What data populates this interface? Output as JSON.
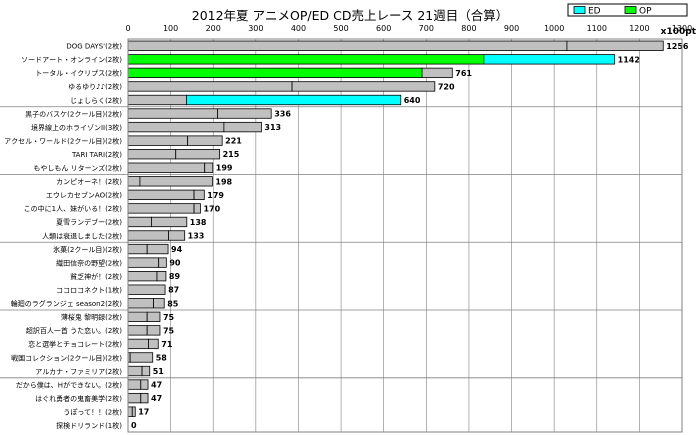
{
  "chart_data": {
    "type": "bar",
    "title": "2012年夏 アニメOP/ED CD売上レース 21週目（合算）",
    "unit_label": "x100pt",
    "xlim": [
      0,
      1300
    ],
    "x_ticks": [
      0,
      100,
      200,
      300,
      400,
      500,
      600,
      700,
      800,
      900,
      1000,
      1100,
      1200,
      1300
    ],
    "grid": true,
    "legend": [
      {
        "name": "ED",
        "color": "#00ffff"
      },
      {
        "name": "OP",
        "color": "#00ff00"
      }
    ],
    "legend_position": "top-right",
    "colors": {
      "other": "#c0c0c0",
      "ED": "#00ffff",
      "OP": "#00ff00",
      "grid": "#808080"
    },
    "categories": [
      "DOG DAYS'(2枚)",
      "ソードアート・オンライン(2枚)",
      "トータル・イクリプス(2枚)",
      "ゆるゆり♪♪(2枚)",
      "じょしらく(2枚)",
      "黒子のバスケ(2クール目)(2枚)",
      "境界線上のホライゾンII(3枚)",
      "アクセル・ワールド(2クール目)(2枚)",
      "TARI TARI(2枚)",
      "もやしもん リターンズ(2枚)",
      "カンピオーネ！(2枚)",
      "エウレカセブンAO(2枚)",
      "この中に1人、妹がいる！(2枚)",
      "夏雪ランデブー(2枚)",
      "人類は衰退しました(2枚)",
      "氷菓(2クール目)(2枚)",
      "織田信奈の野望(2枚)",
      "貧乏神が！(2枚)",
      "ココロコネクト(1枚)",
      "輪廻のラグランジェ season2(2枚)",
      "薄桜鬼 黎明録(2枚)",
      "超訳百人一首 うた恋い。(2枚)",
      "恋と選挙とチョコレート(2枚)",
      "戦国コレクション(2クール目)(2枚)",
      "アルカナ・ファミリア(2枚)",
      "だから僕は、Hができない。(2枚)",
      "はぐれ勇者の鬼畜美学(2枚)",
      "うぽって！！(2枚)",
      "探検ドリランド(1枚)"
    ],
    "values": [
      1256,
      1142,
      761,
      720,
      640,
      336,
      313,
      221,
      215,
      199,
      198,
      179,
      170,
      138,
      133,
      94,
      90,
      89,
      87,
      85,
      75,
      75,
      71,
      58,
      51,
      47,
      47,
      17,
      0
    ],
    "value_labels": [
      "1256",
      "1142",
      "761",
      "720",
      "640",
      "336",
      "313",
      "221",
      "215",
      "199",
      "198",
      "179",
      "170",
      "138",
      "133",
      "94",
      "90",
      "89",
      "87",
      "85",
      "75",
      "75",
      "71",
      "58",
      "51",
      "47",
      "47",
      "17",
      "0"
    ],
    "segments": [
      [
        {
          "value": 1030,
          "type": "other"
        },
        {
          "value": 226,
          "type": "other"
        }
      ],
      [
        {
          "value": 835,
          "type": "OP"
        },
        {
          "value": 307,
          "type": "ED"
        }
      ],
      [
        {
          "value": 690,
          "type": "OP"
        },
        {
          "value": 71,
          "type": "other"
        }
      ],
      [
        {
          "value": 385,
          "type": "other"
        },
        {
          "value": 335,
          "type": "other"
        }
      ],
      [
        {
          "value": 137,
          "type": "other"
        },
        {
          "value": 503,
          "type": "ED"
        }
      ],
      [
        {
          "value": 210,
          "type": "other"
        },
        {
          "value": 126,
          "type": "other"
        }
      ],
      [
        {
          "value": 225,
          "type": "other"
        },
        {
          "value": 88,
          "type": "other"
        }
      ],
      [
        {
          "value": 140,
          "type": "other"
        },
        {
          "value": 81,
          "type": "other"
        }
      ],
      [
        {
          "value": 112,
          "type": "other"
        },
        {
          "value": 103,
          "type": "other"
        }
      ],
      [
        {
          "value": 180,
          "type": "other"
        },
        {
          "value": 19,
          "type": "other"
        }
      ],
      [
        {
          "value": 28,
          "type": "other"
        },
        {
          "value": 170,
          "type": "other"
        }
      ],
      [
        {
          "value": 155,
          "type": "other"
        },
        {
          "value": 24,
          "type": "other"
        }
      ],
      [
        {
          "value": 155,
          "type": "other"
        },
        {
          "value": 15,
          "type": "other"
        }
      ],
      [
        {
          "value": 55,
          "type": "other"
        },
        {
          "value": 83,
          "type": "other"
        }
      ],
      [
        {
          "value": 95,
          "type": "other"
        },
        {
          "value": 38,
          "type": "other"
        }
      ],
      [
        {
          "value": 45,
          "type": "other"
        },
        {
          "value": 49,
          "type": "other"
        }
      ],
      [
        {
          "value": 72,
          "type": "other"
        },
        {
          "value": 18,
          "type": "other"
        }
      ],
      [
        {
          "value": 68,
          "type": "other"
        },
        {
          "value": 21,
          "type": "other"
        }
      ],
      [
        {
          "value": 87,
          "type": "other"
        }
      ],
      [
        {
          "value": 60,
          "type": "other"
        },
        {
          "value": 25,
          "type": "other"
        }
      ],
      [
        {
          "value": 45,
          "type": "other"
        },
        {
          "value": 30,
          "type": "other"
        }
      ],
      [
        {
          "value": 45,
          "type": "other"
        },
        {
          "value": 30,
          "type": "other"
        }
      ],
      [
        {
          "value": 48,
          "type": "other"
        },
        {
          "value": 23,
          "type": "other"
        }
      ],
      [
        {
          "value": 5,
          "type": "other"
        },
        {
          "value": 53,
          "type": "other"
        }
      ],
      [
        {
          "value": 33,
          "type": "other"
        },
        {
          "value": 18,
          "type": "other"
        }
      ],
      [
        {
          "value": 30,
          "type": "other"
        },
        {
          "value": 17,
          "type": "other"
        }
      ],
      [
        {
          "value": 30,
          "type": "other"
        },
        {
          "value": 17,
          "type": "other"
        }
      ],
      [
        {
          "value": 10,
          "type": "other"
        },
        {
          "value": 7,
          "type": "other"
        }
      ],
      []
    ],
    "group_dividers_after": [
      4,
      9,
      14,
      19,
      24
    ]
  }
}
